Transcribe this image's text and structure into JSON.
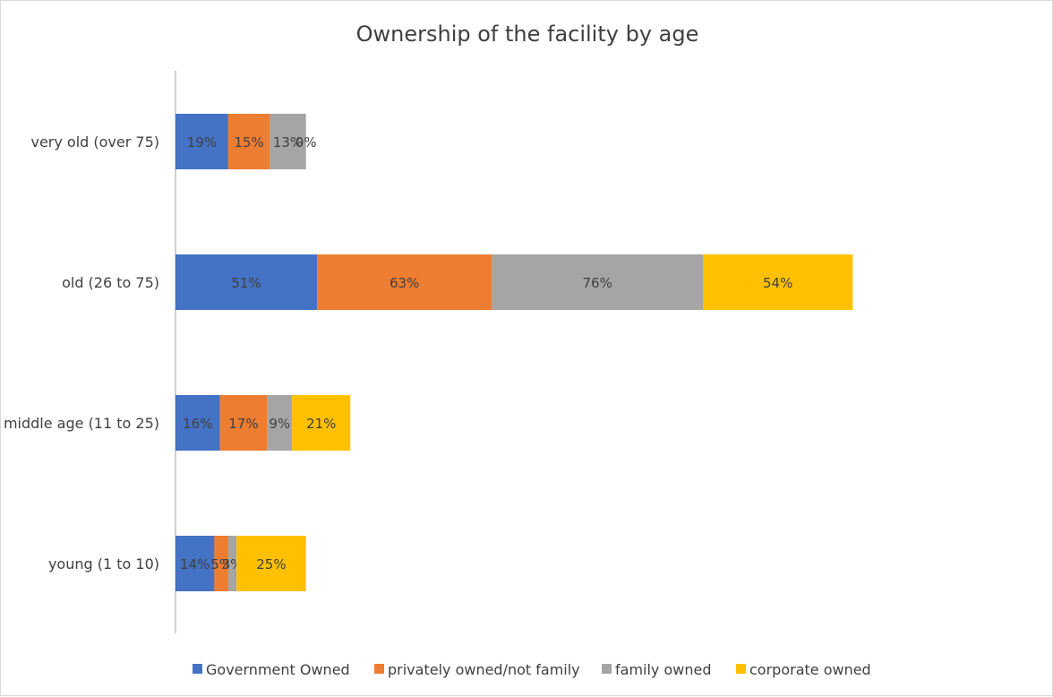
{
  "chart_data": {
    "type": "bar",
    "orientation": "horizontal",
    "stacked": true,
    "title": "Ownership of the facility by age",
    "xlabel": "",
    "ylabel": "",
    "categories": [
      "young (1 to 10)",
      "middle age (11 to 25)",
      "old (26 to 75)",
      "very old (over 75)"
    ],
    "series": [
      {
        "name": "Government Owned",
        "color": "#4472C4",
        "values": [
          14,
          16,
          51,
          19
        ],
        "labels": [
          "14%",
          "16%",
          "51%",
          "19%"
        ]
      },
      {
        "name": "privately owned/not family",
        "color": "#ED7D31",
        "values": [
          5,
          17,
          63,
          15
        ],
        "labels": [
          "5%",
          "17%",
          "63%",
          "15%"
        ]
      },
      {
        "name": "family owned",
        "color": "#A5A5A5",
        "values": [
          3,
          9,
          76,
          13
        ],
        "labels": [
          "3%",
          "9%",
          "76%",
          "13%"
        ]
      },
      {
        "name": "corporate owned",
        "color": "#FFC000",
        "values": [
          25,
          21,
          54,
          0
        ],
        "labels": [
          "25%",
          "21%",
          "54%",
          "0%"
        ]
      }
    ],
    "xlim": [
      0,
      250
    ],
    "grid": false,
    "legend_position": "bottom",
    "axis_color": "#bfbfbf"
  }
}
